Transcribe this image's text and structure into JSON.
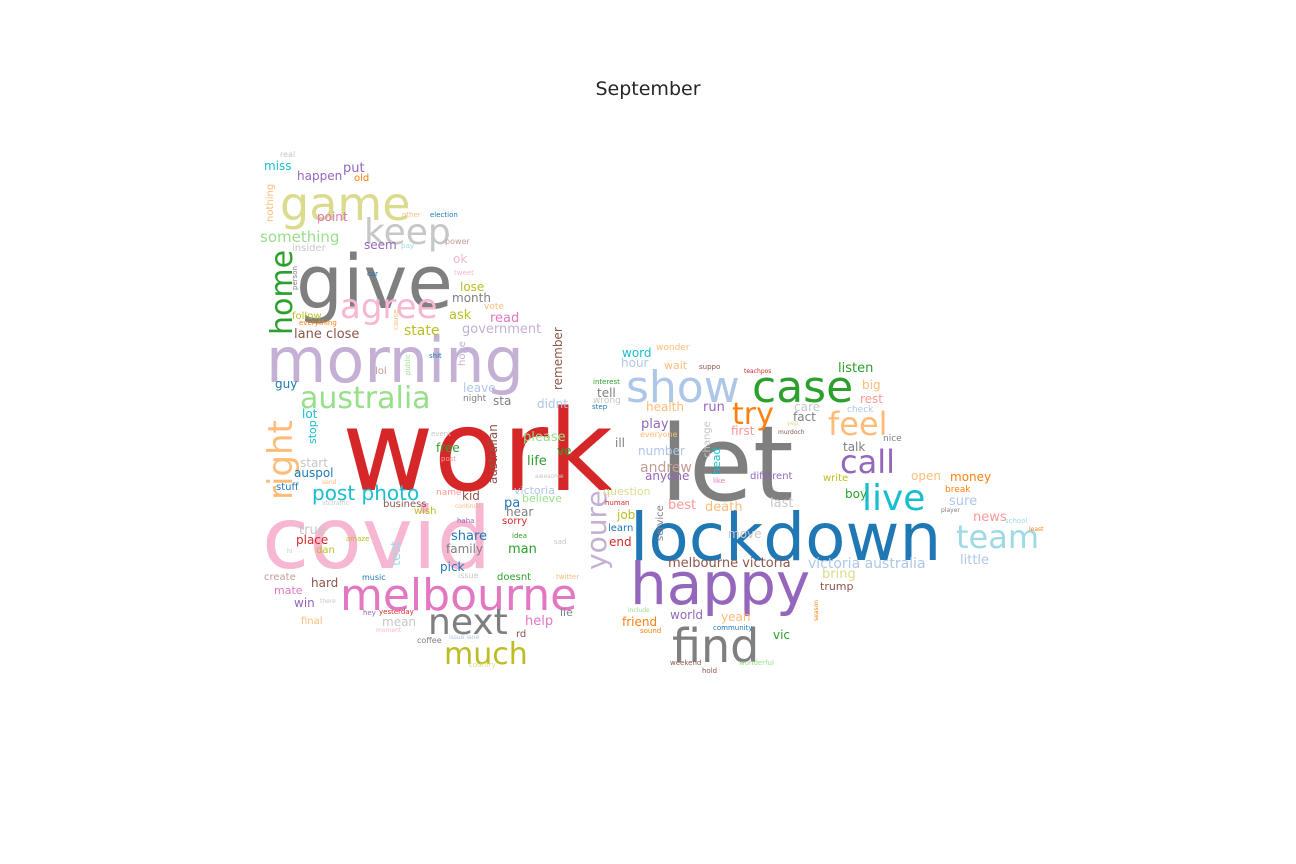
{
  "title": "September",
  "palette": [
    "#1f77b4",
    "#aec7e8",
    "#ff7f0e",
    "#ffbb78",
    "#2ca02c",
    "#98df8a",
    "#d62728",
    "#ff9896",
    "#9467bd",
    "#c5b0d5",
    "#8c564b",
    "#c49c94",
    "#e377c2",
    "#f7b6d2",
    "#7f7f7f",
    "#c7c7c7",
    "#bcbd22",
    "#dbdb8d",
    "#17becf",
    "#9edae5"
  ],
  "words": [
    {
      "text": "work",
      "color": "#d62728",
      "weight": 1.0
    },
    {
      "text": "covid",
      "color": "#f7b6d2",
      "weight": 0.93
    },
    {
      "text": "let",
      "color": "#7f7f7f",
      "weight": 0.91
    },
    {
      "text": "lockdown",
      "color": "#1f77b4",
      "weight": 0.63
    },
    {
      "text": "happy",
      "color": "#9467bd",
      "weight": 0.58
    },
    {
      "text": "morning",
      "color": "#c5b0d5",
      "weight": 0.57
    },
    {
      "text": "give",
      "color": "#7f7f7f",
      "weight": 0.66
    },
    {
      "text": "melbourne",
      "color": "#e377c2",
      "weight": 0.45
    },
    {
      "text": "show",
      "color": "#aec7e8",
      "weight": 0.43
    },
    {
      "text": "case",
      "color": "#2ca02c",
      "weight": 0.43
    },
    {
      "text": "find",
      "color": "#7f7f7f",
      "weight": 0.43
    },
    {
      "text": "game",
      "color": "#dbdb8d",
      "weight": 0.45
    },
    {
      "text": "next",
      "color": "#7f7f7f",
      "weight": 0.36
    },
    {
      "text": "live",
      "color": "#17becf",
      "weight": 0.35
    },
    {
      "text": "team",
      "color": "#9edae5",
      "weight": 0.31
    },
    {
      "text": "call",
      "color": "#9467bd",
      "weight": 0.31
    },
    {
      "text": "feel",
      "color": "#ffbb78",
      "weight": 0.31
    },
    {
      "text": "try",
      "color": "#ff7f0e",
      "weight": 0.29
    },
    {
      "text": "much",
      "color": "#bcbd22",
      "weight": 0.28
    },
    {
      "text": "keep",
      "color": "#c7c7c7",
      "weight": 0.33
    },
    {
      "text": "agree",
      "color": "#f7b6d2",
      "weight": 0.32
    },
    {
      "text": "australia",
      "color": "#98df8a",
      "weight": 0.28
    },
    {
      "text": "right",
      "color": "#ffbb78",
      "weight": 0.33
    },
    {
      "text": "home",
      "color": "#2ca02c",
      "weight": 0.3
    },
    {
      "text": "youre",
      "color": "#c5b0d5",
      "weight": 0.28
    },
    {
      "text": "post photo",
      "color": "#17becf",
      "weight": 0.18
    },
    {
      "text": "victoria australia",
      "color": "#aec7e8",
      "weight": 0.13
    },
    {
      "text": "melbourne victoria",
      "color": "#8c564b",
      "weight": 0.12
    },
    {
      "text": "something",
      "color": "#98df8a",
      "weight": 0.14
    },
    {
      "text": "state",
      "color": "#bcbd22",
      "weight": 0.12
    },
    {
      "text": "lane close",
      "color": "#8c564b",
      "weight": 0.12
    },
    {
      "text": "government",
      "color": "#c5b0d5",
      "weight": 0.11
    },
    {
      "text": "listen",
      "color": "#2ca02c",
      "weight": 0.11
    },
    {
      "text": "australian",
      "color": "#8c564b",
      "weight": 0.1
    },
    {
      "text": "andrew",
      "color": "#c49c94",
      "weight": 0.11
    },
    {
      "text": "remember",
      "color": "#8c564b",
      "weight": 0.1
    },
    {
      "text": "little",
      "color": "#aec7e8",
      "weight": 0.11
    },
    {
      "text": "money",
      "color": "#ff7f0e",
      "weight": 0.1
    },
    {
      "text": "test",
      "color": "#9edae5",
      "weight": 0.1
    },
    {
      "text": "put",
      "color": "#9467bd",
      "weight": 0.1
    },
    {
      "text": "happen",
      "color": "#9467bd",
      "weight": 0.09
    },
    {
      "text": "miss",
      "color": "#17becf",
      "weight": 0.09
    },
    {
      "text": "point",
      "color": "#e377c2",
      "weight": 0.09
    },
    {
      "text": "seem",
      "color": "#9467bd",
      "weight": 0.09
    },
    {
      "text": "lose",
      "color": "#bcbd22",
      "weight": 0.09
    },
    {
      "text": "month",
      "color": "#7f7f7f",
      "weight": 0.09
    },
    {
      "text": "ask",
      "color": "#bcbd22",
      "weight": 0.09
    },
    {
      "text": "read",
      "color": "#e377c2",
      "weight": 0.09
    },
    {
      "text": "word",
      "color": "#17becf",
      "weight": 0.09
    },
    {
      "text": "health",
      "color": "#ffbb78",
      "weight": 0.09
    },
    {
      "text": "run",
      "color": "#9467bd",
      "weight": 0.09
    },
    {
      "text": "play",
      "color": "#9467bd",
      "weight": 0.09
    },
    {
      "text": "please",
      "color": "#98df8a",
      "weight": 0.09
    },
    {
      "text": "life",
      "color": "#2ca02c",
      "weight": 0.09
    },
    {
      "text": "man",
      "color": "#2ca02c",
      "weight": 0.09
    },
    {
      "text": "share",
      "color": "#1f77b4",
      "weight": 0.09
    },
    {
      "text": "place",
      "color": "#d62728",
      "weight": 0.08
    },
    {
      "text": "true",
      "color": "#c7c7c7",
      "weight": 0.09
    },
    {
      "text": "win",
      "color": "#9467bd",
      "weight": 0.08
    },
    {
      "text": "mate",
      "color": "#e377c2",
      "weight": 0.08
    },
    {
      "text": "hard",
      "color": "#8c564b",
      "weight": 0.08
    },
    {
      "text": "mean",
      "color": "#c7c7c7",
      "weight": 0.09
    },
    {
      "text": "help",
      "color": "#e377c2",
      "weight": 0.09
    },
    {
      "text": "friend",
      "color": "#ff7f0e",
      "weight": 0.08
    },
    {
      "text": "vic",
      "color": "#2ca02c",
      "weight": 0.08
    },
    {
      "text": "world",
      "color": "#9467bd",
      "weight": 0.08
    },
    {
      "text": "yeah",
      "color": "#ffbb78",
      "weight": 0.08
    },
    {
      "text": "bring",
      "color": "#dbdb8d",
      "weight": 0.08
    },
    {
      "text": "trump",
      "color": "#8c564b",
      "weight": 0.07
    },
    {
      "text": "news",
      "color": "#ff9896",
      "weight": 0.08
    },
    {
      "text": "sure",
      "color": "#aec7e8",
      "weight": 0.08
    },
    {
      "text": "last",
      "color": "#c7c7c7",
      "weight": 0.08
    },
    {
      "text": "death",
      "color": "#ffbb78",
      "weight": 0.08
    },
    {
      "text": "best",
      "color": "#ff9896",
      "weight": 0.08
    },
    {
      "text": "open",
      "color": "#ffbb78",
      "weight": 0.08
    },
    {
      "text": "boy",
      "color": "#2ca02c",
      "weight": 0.07
    },
    {
      "text": "talk",
      "color": "#7f7f7f",
      "weight": 0.08
    },
    {
      "text": "fact",
      "color": "#7f7f7f",
      "weight": 0.07
    },
    {
      "text": "care",
      "color": "#c7c7c7",
      "weight": 0.08
    },
    {
      "text": "first",
      "color": "#ff9896",
      "weight": 0.08
    },
    {
      "text": "big",
      "color": "#ffbb78",
      "weight": 0.08
    },
    {
      "text": "rest",
      "color": "#ff9896",
      "weight": 0.08
    },
    {
      "text": "ok",
      "color": "#f7b6d2",
      "weight": 0.08
    },
    {
      "text": "lot",
      "color": "#17becf",
      "weight": 0.08
    },
    {
      "text": "guy",
      "color": "#1f77b4",
      "weight": 0.08
    },
    {
      "text": "stop",
      "color": "#17becf",
      "weight": 0.07
    },
    {
      "text": "free",
      "color": "#2ca02c",
      "weight": 0.07
    },
    {
      "text": "ve",
      "color": "#2ca02c",
      "weight": 0.08
    },
    {
      "text": "auspol",
      "color": "#1f77b4",
      "weight": 0.07
    },
    {
      "text": "start",
      "color": "#c7c7c7",
      "weight": 0.07
    },
    {
      "text": "pa",
      "color": "#1f77b4",
      "weight": 0.08
    },
    {
      "text": "hear",
      "color": "#7f7f7f",
      "weight": 0.07
    },
    {
      "text": "family",
      "color": "#7f7f7f",
      "weight": 0.07
    },
    {
      "text": "pick",
      "color": "#1f77b4",
      "weight": 0.08
    },
    {
      "text": "job",
      "color": "#bcbd22",
      "weight": 0.07
    },
    {
      "text": "end",
      "color": "#d62728",
      "weight": 0.07
    },
    {
      "text": "move",
      "color": "#c7c7c7",
      "weight": 0.07
    },
    {
      "text": "number",
      "color": "#aec7e8",
      "weight": 0.07
    },
    {
      "text": "anyone",
      "color": "#9467bd",
      "weight": 0.07
    },
    {
      "text": "different",
      "color": "#9467bd",
      "weight": 0.06
    },
    {
      "text": "write",
      "color": "#bcbd22",
      "weight": 0.06
    },
    {
      "text": "hour",
      "color": "#aec7e8",
      "weight": 0.07
    },
    {
      "text": "wait",
      "color": "#ffbb78",
      "weight": 0.07
    },
    {
      "text": "tell",
      "color": "#7f7f7f",
      "weight": 0.07
    },
    {
      "text": "ill",
      "color": "#7f7f7f",
      "weight": 0.07
    },
    {
      "text": "didnt",
      "color": "#aec7e8",
      "weight": 0.07
    },
    {
      "text": "sta",
      "color": "#7f7f7f",
      "weight": 0.07
    },
    {
      "text": "leave",
      "color": "#aec7e8",
      "weight": 0.07
    },
    {
      "text": "kid",
      "color": "#8c564b",
      "weight": 0.07
    },
    {
      "text": "believe",
      "color": "#98df8a",
      "weight": 0.07
    },
    {
      "text": "victoria",
      "color": "#aec7e8",
      "weight": 0.07
    },
    {
      "text": "sorry",
      "color": "#d62728",
      "weight": 0.06
    },
    {
      "text": "wish",
      "color": "#bcbd22",
      "weight": 0.06
    },
    {
      "text": "question",
      "color": "#dbdb8d",
      "weight": 0.07
    },
    {
      "text": "doesnt",
      "color": "#2ca02c",
      "weight": 0.06
    },
    {
      "text": "follow",
      "color": "#bcbd22",
      "weight": 0.06
    },
    {
      "text": "lol",
      "color": "#c49c94",
      "weight": 0.06
    },
    {
      "text": "stuff",
      "color": "#1f77b4",
      "weight": 0.06
    },
    {
      "text": "dan",
      "color": "#bcbd22",
      "weight": 0.06
    },
    {
      "text": "create",
      "color": "#c49c94",
      "weight": 0.06
    },
    {
      "text": "final",
      "color": "#ffbb78",
      "weight": 0.06
    },
    {
      "text": "lie",
      "color": "#7f7f7f",
      "weight": 0.07
    },
    {
      "text": "rd",
      "color": "#8c564b",
      "weight": 0.06
    },
    {
      "text": "old",
      "color": "#ff7f0e",
      "weight": 0.06
    },
    {
      "text": "nothing",
      "color": "#ffbb78",
      "weight": 0.06
    },
    {
      "text": "insider",
      "color": "#c7c7c7",
      "weight": 0.06
    },
    {
      "text": "real",
      "color": "#c7c7c7",
      "weight": 0.05
    },
    {
      "text": "business",
      "color": "#8c564b",
      "weight": 0.06
    },
    {
      "text": "music",
      "color": "#1f77b4",
      "weight": 0.05
    },
    {
      "text": "coffee",
      "color": "#7f7f7f",
      "weight": 0.05
    },
    {
      "text": "learn",
      "color": "#1f77b4",
      "weight": 0.06
    },
    {
      "text": "head",
      "color": "#17becf",
      "weight": 0.06
    },
    {
      "text": "service",
      "color": "#7f7f7f",
      "weight": 0.05
    },
    {
      "text": "change",
      "color": "#c7c7c7",
      "weight": 0.06
    },
    {
      "text": "night",
      "color": "#7f7f7f",
      "weight": 0.05
    },
    {
      "text": "hope",
      "color": "#c5b0d5",
      "weight": 0.05
    },
    {
      "text": "wonder",
      "color": "#ffbb78",
      "weight": 0.05
    },
    {
      "text": "check",
      "color": "#aec7e8",
      "weight": 0.05
    },
    {
      "text": "nice",
      "color": "#7f7f7f",
      "weight": 0.05
    },
    {
      "text": "break",
      "color": "#ff7f0e",
      "weight": 0.05
    },
    {
      "text": "vote",
      "color": "#ffbb78",
      "weight": 0.05
    },
    {
      "text": "power",
      "color": "#c49c94",
      "weight": 0.05
    },
    {
      "text": "everyone",
      "color": "#ffbb78",
      "weight": 0.05
    },
    {
      "text": "name",
      "color": "#ff9896",
      "weight": 0.05
    },
    {
      "text": "idea",
      "color": "#2ca02c",
      "weight": 0.04
    },
    {
      "text": "issue",
      "color": "#c7c7c7",
      "weight": 0.05
    },
    {
      "text": "twitter",
      "color": "#ffbb78",
      "weight": 0.04
    },
    {
      "text": "wrong",
      "color": "#c7c7c7",
      "weight": 0.05
    },
    {
      "text": "step",
      "color": "#1f77b4",
      "weight": 0.04
    },
    {
      "text": "shit",
      "color": "#1f77b4",
      "weight": 0.04
    },
    {
      "text": "election",
      "color": "#1f77b4",
      "weight": 0.04
    },
    {
      "text": "car",
      "color": "#1f77b4",
      "weight": 0.04
    },
    {
      "text": "pay",
      "color": "#9edae5",
      "weight": 0.04
    },
    {
      "text": "person",
      "color": "#7f7f7f",
      "weight": 0.04
    },
    {
      "text": "everything",
      "color": "#ff7f0e",
      "weight": 0.04
    },
    {
      "text": "other",
      "color": "#ffbb78",
      "weight": 0.04
    },
    {
      "text": "tweet",
      "color": "#f7b6d2",
      "weight": 0.04
    },
    {
      "text": "cause",
      "color": "#ffbb78",
      "weight": 0.04
    },
    {
      "text": "public",
      "color": "#98df8a",
      "weight": 0.04
    },
    {
      "text": "interest",
      "color": "#2ca02c",
      "weight": 0.04
    },
    {
      "text": "suppo",
      "color": "#8c564b",
      "weight": 0.04
    },
    {
      "text": "teachpos",
      "color": "#d62728",
      "weight": 0.04
    },
    {
      "text": "event",
      "color": "#c7c7c7",
      "weight": 0.04
    },
    {
      "text": "post",
      "color": "#ff9896",
      "weight": 0.04
    },
    {
      "text": "haha",
      "color": "#9467bd",
      "weight": 0.04
    },
    {
      "text": "continue",
      "color": "#ffbb78",
      "weight": 0.04
    },
    {
      "text": "sad",
      "color": "#c7c7c7",
      "weight": 0.04
    },
    {
      "text": "amaze",
      "color": "#bcbd22",
      "weight": 0.04
    },
    {
      "text": "human",
      "color": "#d62728",
      "weight": 0.04
    },
    {
      "text": "player",
      "color": "#7f7f7f",
      "weight": 0.04
    },
    {
      "text": "school",
      "color": "#9edae5",
      "weight": 0.04
    },
    {
      "text": "least",
      "color": "#ff7f0e",
      "weight": 0.04
    },
    {
      "text": "like",
      "color": "#e377c2",
      "weight": 0.04
    },
    {
      "text": "murdoch",
      "color": "#8c564b",
      "weight": 0.04
    },
    {
      "text": "community",
      "color": "#1f77b4",
      "weight": 0.04
    },
    {
      "text": "include",
      "color": "#98df8a",
      "weight": 0.04
    },
    {
      "text": "sound",
      "color": "#ff7f0e",
      "weight": 0.04
    },
    {
      "text": "weekend",
      "color": "#8c564b",
      "weight": 0.04
    },
    {
      "text": "hold",
      "color": "#8c564b",
      "weight": 0.04
    },
    {
      "text": "wonderful",
      "color": "#98df8a",
      "weight": 0.04
    },
    {
      "text": "season",
      "color": "#ff7f0e",
      "weight": 0.04
    },
    {
      "text": "hey",
      "color": "#9467bd",
      "weight": 0.04
    },
    {
      "text": "yesterday",
      "color": "#d62728",
      "weight": 0.04
    },
    {
      "text": "moment",
      "color": "#f7b6d2",
      "weight": 0.04
    },
    {
      "text": "country",
      "color": "#dbdb8d",
      "weight": 0.04
    },
    {
      "text": "issue lane",
      "color": "#aec7e8",
      "weight": 0.04
    },
    {
      "text": "awesome",
      "color": "#c7c7c7",
      "weight": 0.04
    },
    {
      "text": "yep",
      "color": "#dbdb8d",
      "weight": 0.04
    },
    {
      "text": "hi",
      "color": "#c7c7c7",
      "weight": 0.04
    },
    {
      "text": "there",
      "color": "#c7c7c7",
      "weight": 0.04
    },
    {
      "text": "send",
      "color": "#ffbb78",
      "weight": 0.04
    },
    {
      "text": "vtctraffic",
      "color": "#c7c7c7",
      "weight": 0.04
    }
  ]
}
